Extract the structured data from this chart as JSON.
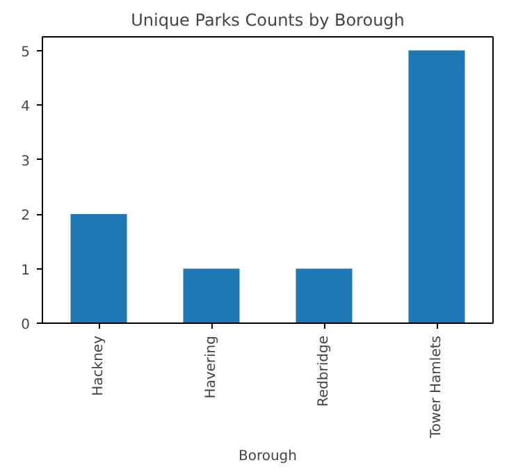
{
  "chart_data": {
    "type": "bar",
    "title": "Unique Parks Counts by Borough",
    "xlabel": "Borough",
    "categories": [
      "Hackney",
      "Havering",
      "Redbridge",
      "Tower Hamlets"
    ],
    "values": [
      2,
      1,
      1,
      5
    ],
    "color": "#1f77b4",
    "ylim": [
      0,
      5.25
    ],
    "yticks": [
      0,
      1,
      2,
      3,
      4,
      5
    ],
    "grid": false
  }
}
